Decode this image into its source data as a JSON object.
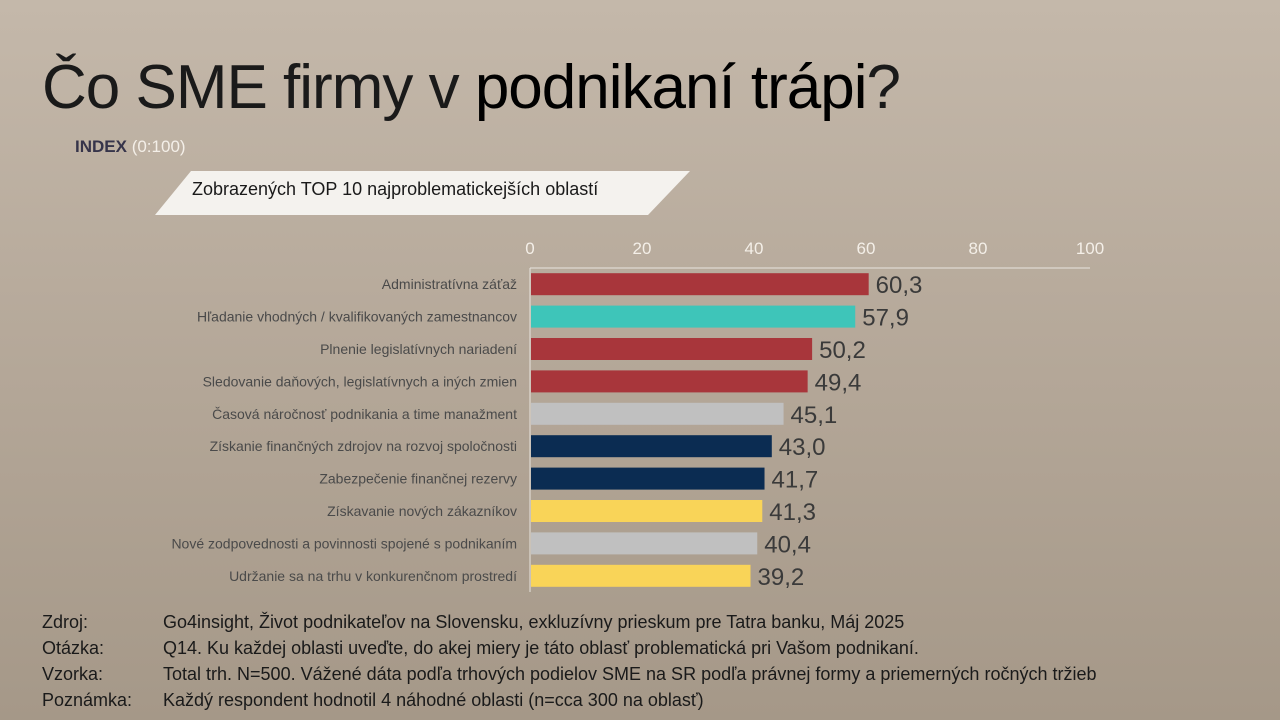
{
  "title": {
    "part1": "Čo SME firmy v ",
    "part2": "podnikaní trápi",
    "part3": "?"
  },
  "subtitle": {
    "bold": "INDEX",
    "rest": " (0:100)"
  },
  "banner": "Zobrazených TOP 10 najproblematickejších oblastí",
  "chart_data": {
    "type": "bar",
    "orientation": "horizontal",
    "xlim": [
      0,
      100
    ],
    "xticks": [
      "0",
      "20",
      "40",
      "60",
      "80",
      "100"
    ],
    "xtick_values": [
      0,
      20,
      40,
      60,
      80,
      100
    ],
    "categories": [
      "Administratívna záťaž",
      "Hľadanie vhodných / kvalifikovaných zamestnancov",
      "Plnenie legislatívnych nariadení",
      "Sledovanie daňových, legislatívnych a iných zmien",
      "Časová náročnosť podnikania a time manažment",
      "Získanie finančných zdrojov na rozvoj spoločnosti",
      "Zabezpečenie finančnej rezervy",
      "Získavanie nových zákazníkov",
      "Nové zodpovednosti a povinnosti spojené s podnikaním",
      "Udržanie sa na trhu v konkurenčnom prostredí"
    ],
    "values": [
      60.3,
      57.9,
      50.2,
      49.4,
      45.1,
      43.0,
      41.7,
      41.3,
      40.4,
      39.2
    ],
    "value_labels": [
      "60,3",
      "57,9",
      "50,2",
      "49,4",
      "45,1",
      "43,0",
      "41,7",
      "41,3",
      "40,4",
      "39,2"
    ],
    "bar_colors": [
      "#a8363b",
      "#3ec5b9",
      "#a8363b",
      "#a8363b",
      "#c0c0c0",
      "#0b2c52",
      "#0b2c52",
      "#f9d458",
      "#c0c0c0",
      "#f9d458"
    ],
    "grid": false
  },
  "colors": {
    "category_label": "#4a4a4a",
    "tick_label": "#f4efe8",
    "value_label": "#3a3a3a",
    "axis_line": "#e8e4de"
  },
  "footer": [
    {
      "label": "Zdroj:",
      "text": "Go4insight, Život podnikateľov na Slovensku, exkluzívny prieskum pre Tatra banku, Máj 2025"
    },
    {
      "label": "Otázka:",
      "text": "Q14. Ku každej oblasti uveďte, do akej miery je táto oblasť problematická pri Vašom podnikaní."
    },
    {
      "label": "Vzorka:",
      "text": "Total trh. N=500. Vážené dáta podľa trhových podielov SME na SR podľa právnej formy a priemerných ročných tržieb"
    },
    {
      "label": "Poznámka:",
      "text": "Každý respondent hodnotil 4 náhodné oblasti (n=cca 300 na oblasť)"
    }
  ]
}
